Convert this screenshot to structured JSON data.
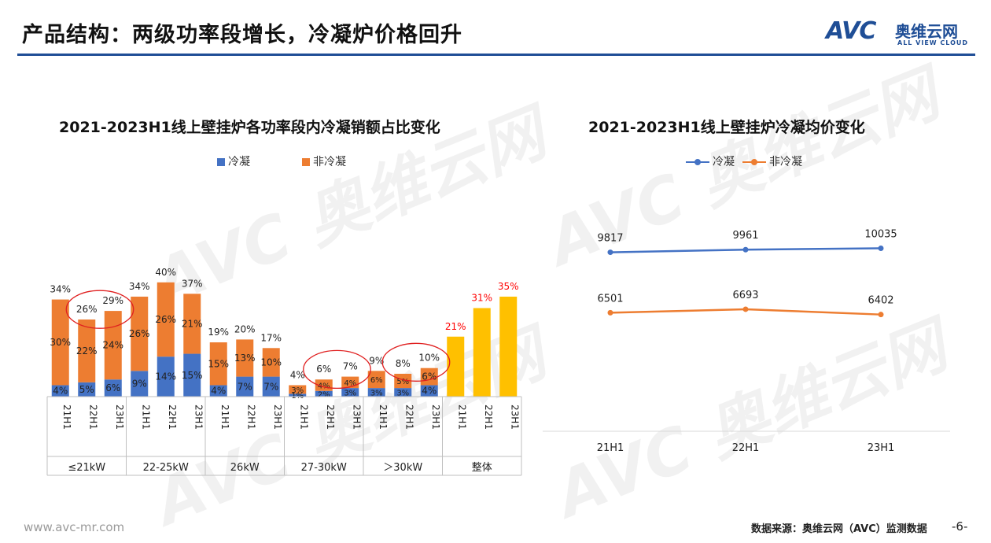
{
  "page": {
    "title": "产品结构：两级功率段增长，冷凝炉价格回升",
    "logo_mark": "AVC",
    "logo_cn": "奥维云网",
    "logo_en": "ALL VIEW CLOUD",
    "footer_url": "www.avc-mr.com",
    "footer_source": "数据来源：奥维云网（AVC）监测数据",
    "page_number": "-6-",
    "accent_color": "#1f4e96"
  },
  "chart_data": [
    {
      "type": "bar",
      "stacked": true,
      "title": "2021-2023H1线上壁挂炉各功率段内冷凝销额占比变化",
      "legend": [
        "冷凝",
        "非冷凝"
      ],
      "legend_placement": "top",
      "colors": {
        "冷凝": "#4472c4",
        "非冷凝": "#ed7d31",
        "整体": "#ffc000",
        "total_highlight": "#ff0000"
      },
      "groups": [
        {
          "name": "≤21kW",
          "categories": [
            "21H1",
            "22H1",
            "23H1"
          ]
        },
        {
          "name": "22-25kW",
          "categories": [
            "21H1",
            "22H1",
            "23H1"
          ]
        },
        {
          "name": "26kW",
          "categories": [
            "21H1",
            "22H1",
            "23H1"
          ]
        },
        {
          "name": "27-30kW",
          "categories": [
            "21H1",
            "22H1",
            "23H1"
          ]
        },
        {
          "name": "＞30kW",
          "categories": [
            "21H1",
            "22H1",
            "23H1"
          ]
        },
        {
          "name": "整体",
          "categories": [
            "21H1",
            "22H1",
            "23H1"
          ]
        }
      ],
      "series": [
        {
          "name": "冷凝",
          "values": [
            4,
            5,
            6,
            9,
            14,
            15,
            4,
            7,
            7,
            1,
            2,
            3,
            3,
            3,
            4,
            null,
            null,
            null
          ],
          "labels": [
            "4%",
            "5%",
            "6%",
            "9%",
            "14%",
            "15%",
            "4%",
            "7%",
            "7%",
            "1%",
            "2%",
            "3%",
            "3%",
            "3%",
            "4%",
            "",
            "",
            ""
          ]
        },
        {
          "name": "非冷凝",
          "values": [
            30,
            22,
            24,
            26,
            26,
            21,
            15,
            13,
            10,
            3,
            4,
            4,
            6,
            5,
            6,
            null,
            null,
            null
          ],
          "labels": [
            "30%",
            "22%",
            "24%",
            "26%",
            "26%",
            "21%",
            "15%",
            "13%",
            "10%",
            "3%",
            "4%",
            "4%",
            "6%",
            "5%",
            "6%",
            "",
            "",
            ""
          ]
        },
        {
          "name": "整体",
          "values": [
            null,
            null,
            null,
            null,
            null,
            null,
            null,
            null,
            null,
            null,
            null,
            null,
            null,
            null,
            null,
            21,
            31,
            35
          ],
          "labels": [
            "",
            "",
            "",
            "",
            "",
            "",
            "",
            "",
            "",
            "",
            "",
            "",
            "",
            "",
            "",
            "",
            "",
            ""
          ]
        }
      ],
      "totals": [
        34,
        26,
        29,
        34,
        40,
        37,
        19,
        20,
        17,
        4,
        6,
        7,
        9,
        8,
        10,
        21,
        31,
        35
      ],
      "total_labels": [
        "34%",
        "26%",
        "29%",
        "34%",
        "40%",
        "37%",
        "19%",
        "20%",
        "17%",
        "4%",
        "6%",
        "7%",
        "9%",
        "8%",
        "10%",
        "21%",
        "31%",
        "35%"
      ],
      "highlighted_totals": [
        1,
        2,
        10,
        11,
        13,
        14
      ],
      "ylim": [
        0,
        45
      ]
    },
    {
      "type": "line",
      "title": "2021-2023H1线上壁挂炉冷凝均价变化",
      "legend": [
        "冷凝",
        "非冷凝"
      ],
      "legend_placement": "top",
      "categories": [
        "21H1",
        "22H1",
        "23H1"
      ],
      "series": [
        {
          "name": "冷凝",
          "values": [
            9817,
            9961,
            10035
          ],
          "labels": [
            "9817",
            "9961",
            "10035"
          ],
          "color": "#4472c4"
        },
        {
          "name": "非冷凝",
          "values": [
            6501,
            6693,
            6402
          ],
          "labels": [
            "6501",
            "6693",
            "6402"
          ],
          "color": "#ed7d31"
        }
      ],
      "ylim": [
        0,
        12000
      ],
      "grid": false
    }
  ]
}
